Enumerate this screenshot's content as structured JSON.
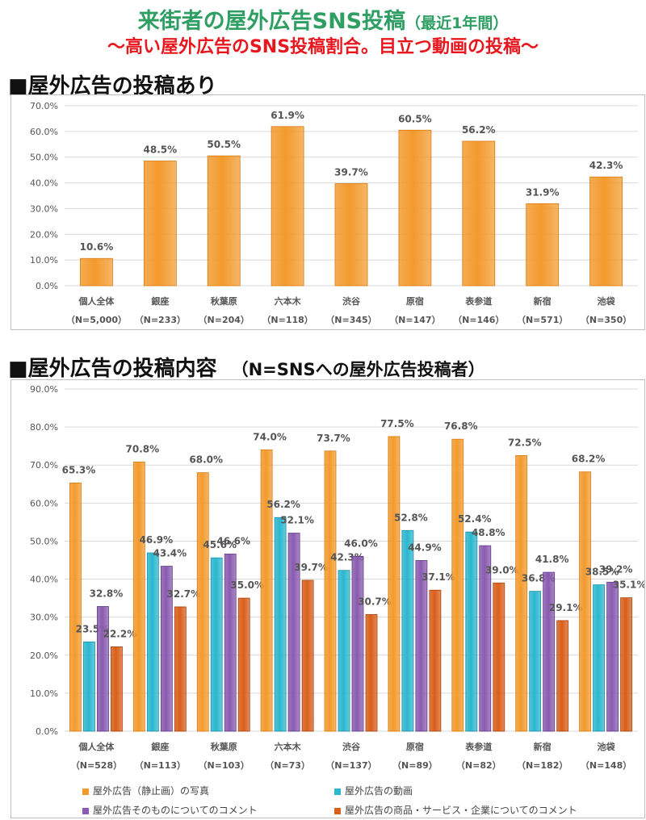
{
  "title": {
    "main": "来街者の屋外広告SNS投稿",
    "sub": "（最近1年間）"
  },
  "subtitle": "〜高い屋外広告のSNS投稿割合。目立つ動画の投稿〜",
  "colors": {
    "orange": "#f39a2d",
    "cyan": "#2bb7cf",
    "purple": "#8a5bb0",
    "rust": "#d95f1a",
    "title": "#2e9e63",
    "subtitle": "#e8161d"
  },
  "section1": {
    "heading": "■屋外広告の投稿あり"
  },
  "section2": {
    "heading": "■屋外広告の投稿内容",
    "note": "（N=SNSへの屋外広告投稿者）"
  },
  "chart_data": [
    {
      "type": "bar",
      "title": "屋外広告の投稿あり",
      "categories": [
        "個人全体",
        "銀座",
        "秋葉原",
        "六本木",
        "渋谷",
        "原宿",
        "表参道",
        "新宿",
        "池袋"
      ],
      "sample_sizes": [
        "（N=5,000）",
        "（N=233）",
        "（N=204）",
        "（N=118）",
        "（N=345）",
        "（N=147）",
        "（N=146）",
        "（N=571）",
        "（N=350）"
      ],
      "values": [
        10.6,
        48.5,
        50.5,
        61.9,
        39.7,
        60.5,
        56.2,
        31.9,
        42.3
      ],
      "value_labels": [
        "10.6%",
        "48.5%",
        "50.5%",
        "61.9%",
        "39.7%",
        "60.5%",
        "56.2%",
        "31.9%",
        "42.3%"
      ],
      "ylim": [
        0,
        70
      ],
      "yticks": [
        "0.0%",
        "10.0%",
        "20.0%",
        "30.0%",
        "40.0%",
        "50.0%",
        "60.0%",
        "70.0%"
      ],
      "grid": true
    },
    {
      "type": "bar",
      "title": "屋外広告の投稿内容",
      "categories": [
        "個人全体",
        "銀座",
        "秋葉原",
        "六本木",
        "渋谷",
        "原宿",
        "表参道",
        "新宿",
        "池袋"
      ],
      "sample_sizes": [
        "（N=528）",
        "（N=113）",
        "（N=103）",
        "（N=73）",
        "（N=137）",
        "（N=89）",
        "（N=82）",
        "（N=182）",
        "（N=148）"
      ],
      "series": [
        {
          "name": "屋外広告（静止画）の写真",
          "values": [
            65.3,
            70.8,
            68.0,
            74.0,
            73.7,
            77.5,
            76.8,
            72.5,
            68.2
          ],
          "labels": [
            "65.3%",
            "70.8%",
            "68.0%",
            "74.0%",
            "73.7%",
            "77.5%",
            "76.8%",
            "72.5%",
            "68.2%"
          ]
        },
        {
          "name": "屋外広告の動画",
          "values": [
            23.5,
            46.9,
            45.6,
            56.2,
            42.3,
            52.8,
            52.4,
            36.8,
            38.5
          ],
          "labels": [
            "23.5%",
            "46.9%",
            "45.6%",
            "56.2%",
            "42.3%",
            "52.8%",
            "52.4%",
            "36.8%",
            "38.5%"
          ]
        },
        {
          "name": "屋外広告そのものについてのコメント",
          "values": [
            32.8,
            43.4,
            46.6,
            52.1,
            46.0,
            44.9,
            48.8,
            41.8,
            39.2
          ],
          "labels": [
            "32.8%",
            "43.4%",
            "46.6%",
            "52.1%",
            "46.0%",
            "44.9%",
            "48.8%",
            "41.8%",
            "39.2%"
          ]
        },
        {
          "name": "屋外広告の商品・サービス・企業についてのコメント",
          "values": [
            22.2,
            32.7,
            35.0,
            39.7,
            30.7,
            37.1,
            39.0,
            29.1,
            35.1
          ],
          "labels": [
            "22.2%",
            "32.7%",
            "35.0%",
            "39.7%",
            "30.7%",
            "37.1%",
            "39.0%",
            "29.1%",
            "35.1%"
          ]
        }
      ],
      "ylim": [
        0,
        90
      ],
      "yticks": [
        "0.0%",
        "10.0%",
        "20.0%",
        "30.0%",
        "40.0%",
        "50.0%",
        "60.0%",
        "70.0%",
        "80.0%",
        "90.0%"
      ],
      "grid": true,
      "legend_position": "bottom"
    }
  ]
}
